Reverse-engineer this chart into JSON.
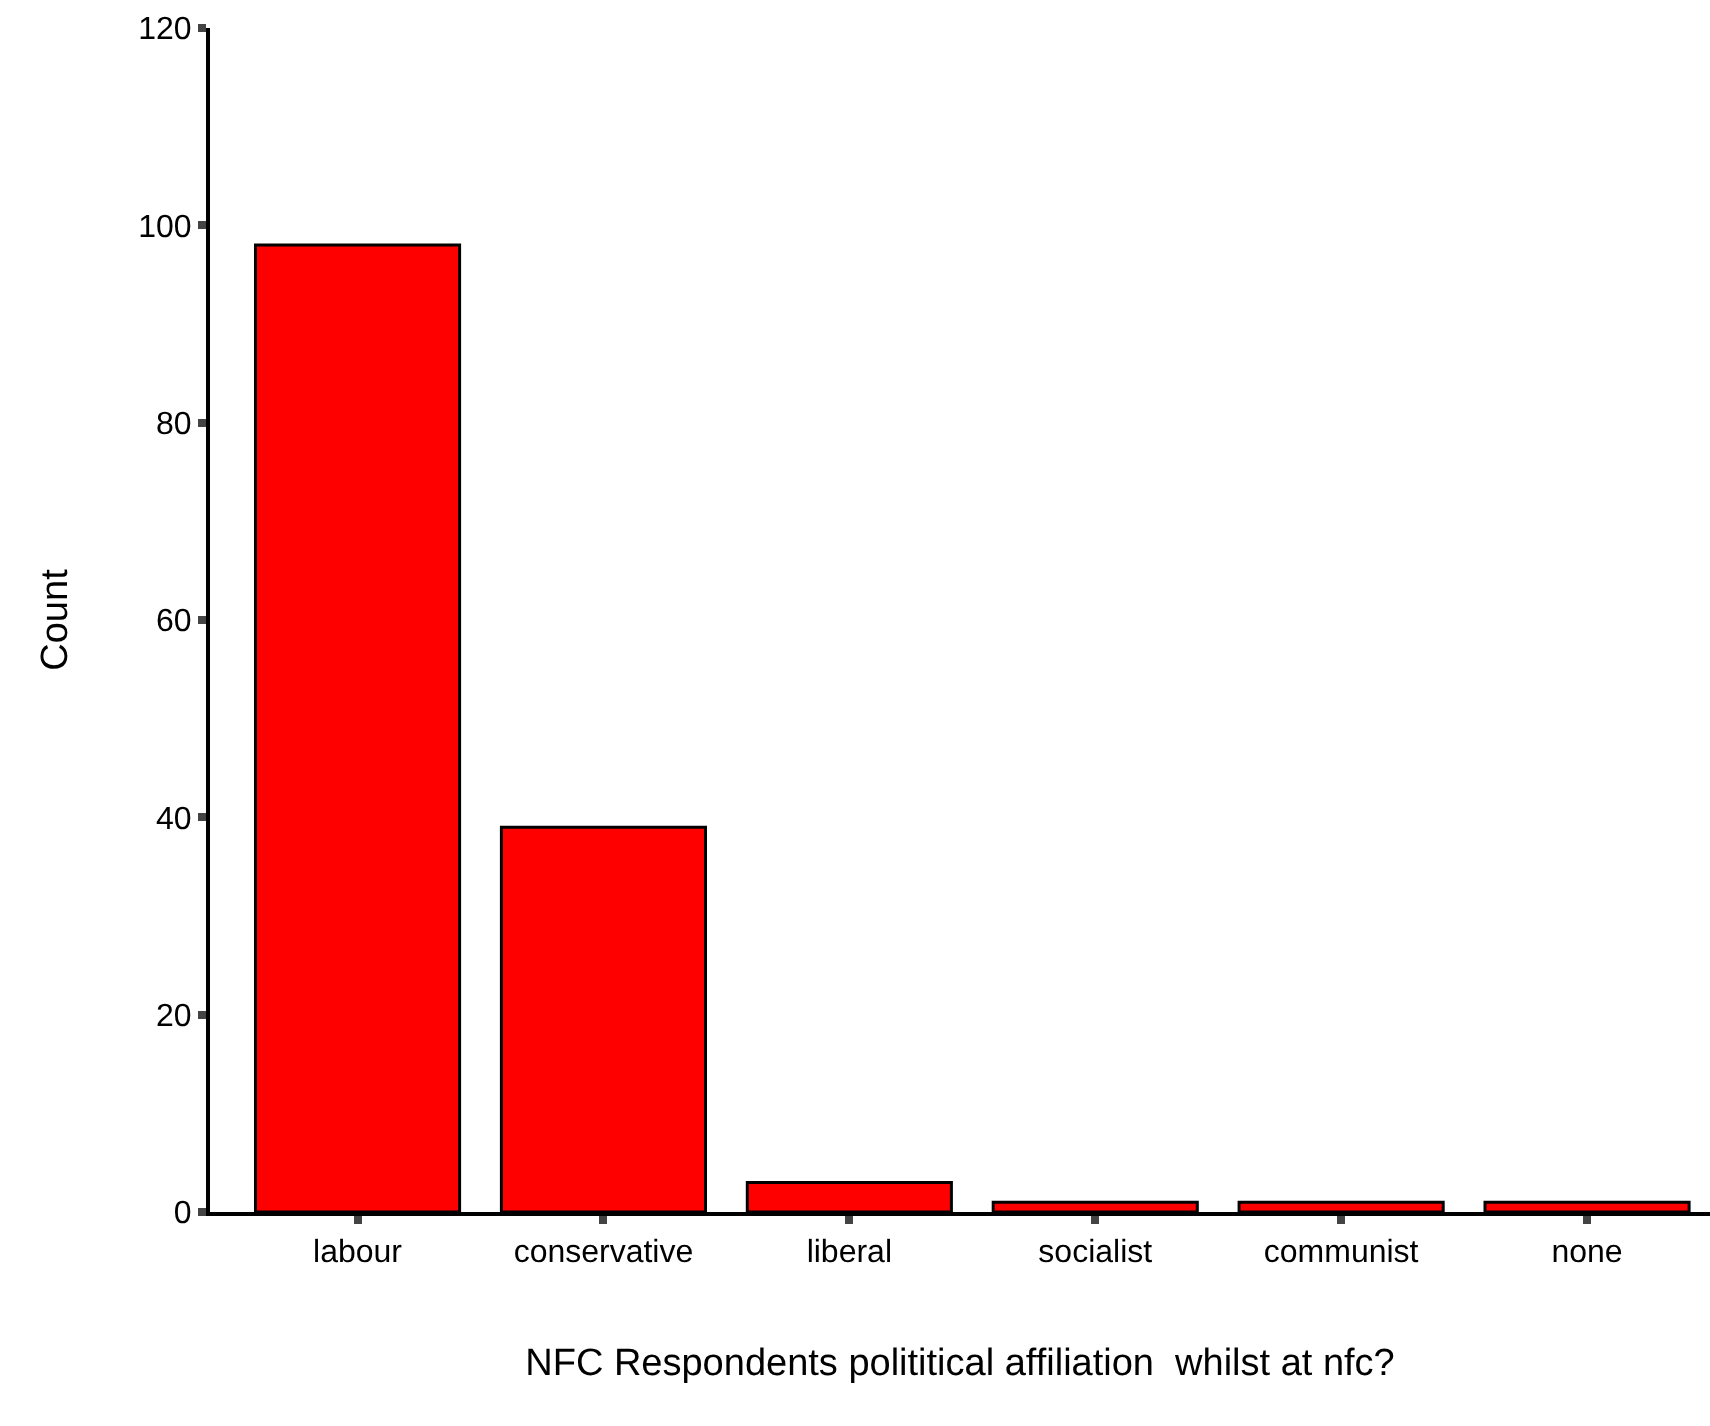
{
  "chart_data": {
    "type": "bar",
    "xlabel": "NFC Respondents polititical affiliation  whilst at nfc?",
    "ylabel": "Count",
    "categories": [
      "labour",
      "conservative",
      "liberal",
      "socialist",
      "communist",
      "none"
    ],
    "values": [
      98,
      39,
      3,
      1,
      1,
      1
    ],
    "color": "#ff0000",
    "ylim": [
      0,
      120
    ],
    "yticks": [
      0,
      20,
      40,
      60,
      80,
      100,
      120
    ]
  }
}
